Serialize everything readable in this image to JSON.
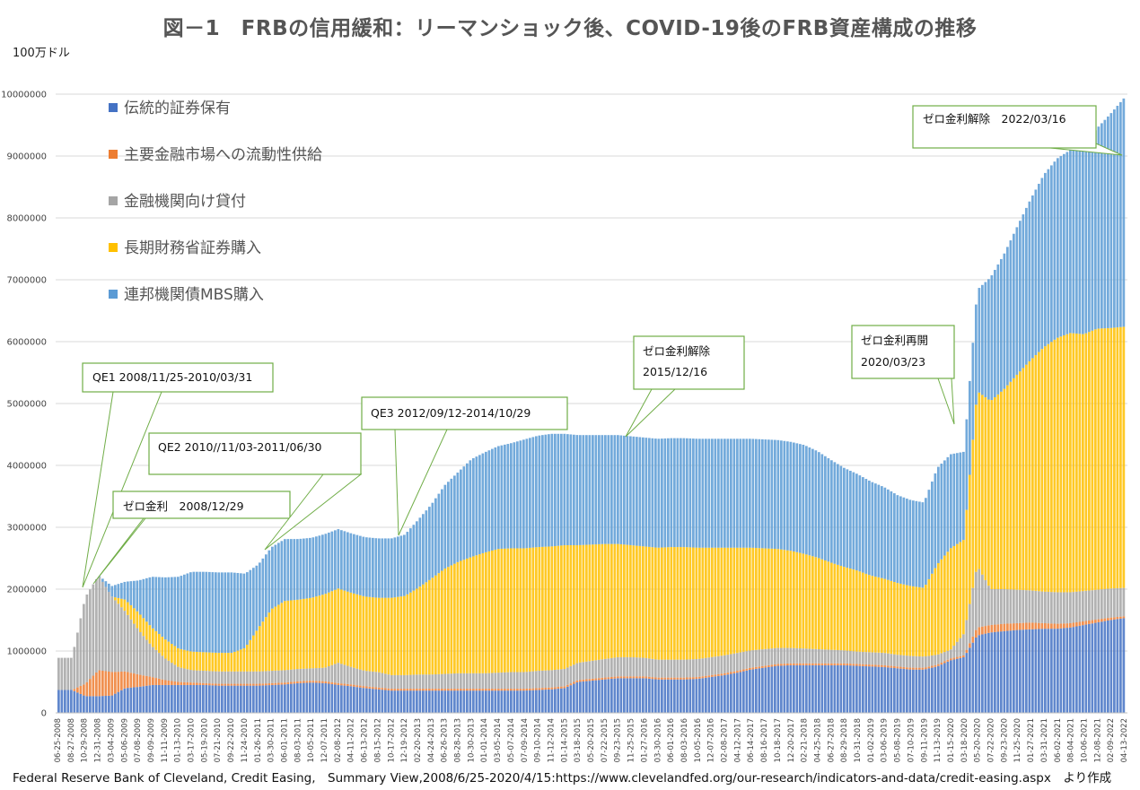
{
  "title": "図－1　FRBの信用緩和：リーマンショック後、COVID-19後のFRB資産構成の推移",
  "unit_label": "100万ドル",
  "source_note": "Federal Reserve Bank of Cleveland, Credit Easing,　Summary View,2008/6/25-2020/4/15:https://www.clevelandfed.org/our-research/indicators-and-data/credit-easing.aspx　より作成",
  "colors": {
    "traditional": "#4472c4",
    "liquidity": "#ed7d31",
    "lending": "#a5a5a5",
    "treasury": "#ffc000",
    "mbs": "#5b9bd5"
  },
  "chart_data": {
    "type": "area",
    "stacked": true,
    "title": "図－1　FRBの信用緩和：リーマンショック後、COVID-19後のFRB資産構成の推移",
    "ylabel": "100万ドル",
    "ylim": [
      0,
      10000000
    ],
    "yticks": [
      0,
      1000000,
      2000000,
      3000000,
      4000000,
      5000000,
      6000000,
      7000000,
      8000000,
      9000000,
      10000000
    ],
    "grid": "horizontal",
    "legend_position": "upper-left",
    "x_tick_labels": [
      "06-25-2008",
      "08-27-2008",
      "10-29-2008",
      "12-31-2008",
      "03-04-2009",
      "05-06-2009",
      "07-08-2009",
      "09-09-2009",
      "11-11-2009",
      "01-13-2010",
      "03-17-2010",
      "05-19-2010",
      "07-21-2010",
      "09-22-2010",
      "11-24-2010",
      "01-26-2011",
      "03-30-2011",
      "06-01-2011",
      "08-03-2011",
      "10-05-2011",
      "12-07-2011",
      "02-08-2012",
      "04-11-2012",
      "06-13-2012",
      "08-15-2012",
      "10-17-2012",
      "12-19-2012",
      "02-20-2013",
      "04-24-2013",
      "06-26-2013",
      "08-28-2013",
      "10-30-2013",
      "01-01-2014",
      "03-05-2014",
      "05-07-2014",
      "07-09-2014",
      "09-10-2014",
      "11-12-2014",
      "01-14-2015",
      "03-18-2015",
      "05-20-2015",
      "07-22-2015",
      "09-23-2015",
      "11-25-2015",
      "01-27-2016",
      "03-30-2016",
      "06-01-2016",
      "08-03-2016",
      "10-05-2016",
      "12-07-2016",
      "02-08-2017",
      "04-12-2017",
      "06-14-2017",
      "08-16-2017",
      "10-18-2017",
      "12-20-2017",
      "02-21-2018",
      "04-25-2018",
      "06-27-2018",
      "08-29-2018",
      "10-31-2018",
      "01-02-2019",
      "03-06-2019",
      "05-08-2019",
      "07-10-2019",
      "09-11-2019",
      "11-13-2019",
      "01-15-2020",
      "03-18-2020",
      "05-20-2020",
      "07-22-2020",
      "09-23-2020",
      "11-25-2020",
      "01-27-2021",
      "03-31-2021",
      "06-02-2021",
      "08-04-2021",
      "10-06-2021",
      "12-08-2021",
      "02-09-2022",
      "04-13-2022"
    ],
    "series": [
      {
        "name": "伝統的証券保有",
        "key": "traditional",
        "values": [
          370000,
          370000,
          270000,
          270000,
          280000,
          400000,
          420000,
          450000,
          450000,
          450000,
          450000,
          450000,
          440000,
          440000,
          440000,
          440000,
          450000,
          460000,
          480000,
          490000,
          480000,
          450000,
          430000,
          400000,
          380000,
          360000,
          360000,
          360000,
          360000,
          360000,
          360000,
          360000,
          360000,
          360000,
          360000,
          360000,
          370000,
          380000,
          400000,
          500000,
          520000,
          540000,
          560000,
          560000,
          560000,
          540000,
          540000,
          540000,
          550000,
          580000,
          610000,
          650000,
          700000,
          730000,
          760000,
          770000,
          770000,
          770000,
          770000,
          770000,
          760000,
          750000,
          740000,
          720000,
          700000,
          700000,
          750000,
          850000,
          900000,
          1250000,
          1300000,
          1320000,
          1340000,
          1350000,
          1360000,
          1360000,
          1380000,
          1420000,
          1460000,
          1500000,
          1530000
        ]
      },
      {
        "name": "主要金融市場への流動性供給",
        "key": "liquidity",
        "values": [
          0,
          0,
          200000,
          420000,
          380000,
          270000,
          200000,
          130000,
          80000,
          50000,
          40000,
          30000,
          30000,
          30000,
          30000,
          30000,
          30000,
          30000,
          30000,
          30000,
          30000,
          30000,
          30000,
          30000,
          30000,
          30000,
          30000,
          30000,
          30000,
          30000,
          30000,
          30000,
          30000,
          30000,
          30000,
          30000,
          30000,
          30000,
          30000,
          30000,
          30000,
          30000,
          30000,
          30000,
          30000,
          30000,
          30000,
          30000,
          30000,
          30000,
          30000,
          30000,
          30000,
          30000,
          30000,
          30000,
          30000,
          30000,
          30000,
          30000,
          30000,
          30000,
          30000,
          30000,
          30000,
          30000,
          30000,
          30000,
          30000,
          130000,
          120000,
          120000,
          110000,
          110000,
          90000,
          80000,
          70000,
          60000,
          50000,
          40000,
          30000
        ]
      },
      {
        "name": "金融機関向け貸付",
        "key": "lending",
        "values": [
          520000,
          520000,
          1400000,
          1530000,
          1220000,
          970000,
          720000,
          500000,
          350000,
          240000,
          200000,
          200000,
          200000,
          200000,
          200000,
          200000,
          200000,
          200000,
          200000,
          200000,
          220000,
          330000,
          280000,
          250000,
          250000,
          220000,
          220000,
          230000,
          230000,
          240000,
          250000,
          250000,
          250000,
          260000,
          270000,
          270000,
          280000,
          280000,
          280000,
          280000,
          290000,
          300000,
          310000,
          310000,
          300000,
          290000,
          290000,
          290000,
          290000,
          290000,
          290000,
          290000,
          280000,
          270000,
          260000,
          250000,
          240000,
          230000,
          220000,
          210000,
          200000,
          200000,
          200000,
          190000,
          190000,
          180000,
          160000,
          140000,
          350000,
          1000000,
          580000,
          560000,
          540000,
          520000,
          510000,
          510000,
          500000,
          490000,
          480000,
          470000,
          460000
        ]
      },
      {
        "name": "長期財務省証券購入",
        "key": "treasury",
        "values": [
          0,
          0,
          0,
          0,
          0,
          190000,
          280000,
          300000,
          310000,
          300000,
          300000,
          300000,
          300000,
          300000,
          380000,
          700000,
          1000000,
          1120000,
          1120000,
          1140000,
          1190000,
          1200000,
          1200000,
          1200000,
          1200000,
          1250000,
          1280000,
          1400000,
          1550000,
          1700000,
          1800000,
          1880000,
          1950000,
          2000000,
          2000000,
          2000000,
          2000000,
          2000000,
          2000000,
          1900000,
          1880000,
          1860000,
          1830000,
          1810000,
          1800000,
          1810000,
          1820000,
          1820000,
          1800000,
          1770000,
          1740000,
          1700000,
          1660000,
          1630000,
          1600000,
          1570000,
          1530000,
          1480000,
          1410000,
          1350000,
          1310000,
          1240000,
          1200000,
          1160000,
          1130000,
          1110000,
          1460000,
          1640000,
          1520000,
          2820000,
          3040000,
          3230000,
          3480000,
          3720000,
          3950000,
          4110000,
          4190000,
          4150000,
          4220000,
          4210000,
          4220000
        ]
      },
      {
        "name": "連邦機関債MBS購入",
        "key": "mbs",
        "values": [
          0,
          0,
          0,
          0,
          170000,
          290000,
          520000,
          820000,
          1000000,
          1160000,
          1290000,
          1300000,
          1300000,
          1300000,
          1200000,
          1030000,
          1000000,
          1000000,
          980000,
          970000,
          970000,
          960000,
          960000,
          960000,
          960000,
          960000,
          990000,
          1100000,
          1200000,
          1350000,
          1450000,
          1580000,
          1620000,
          1660000,
          1700000,
          1760000,
          1800000,
          1820000,
          1800000,
          1780000,
          1770000,
          1760000,
          1760000,
          1760000,
          1760000,
          1760000,
          1760000,
          1760000,
          1760000,
          1760000,
          1760000,
          1760000,
          1760000,
          1760000,
          1760000,
          1760000,
          1760000,
          1720000,
          1660000,
          1600000,
          1560000,
          1520000,
          1480000,
          1420000,
          1390000,
          1380000,
          1560000,
          1520000,
          1420000,
          1640000,
          2000000,
          2180000,
          2390000,
          2600000,
          2790000,
          2900000,
          2960000,
          3050000,
          3240000,
          3460000,
          3690000
        ]
      }
    ]
  },
  "legend": [
    {
      "label": "伝統的証券保有",
      "key": "traditional"
    },
    {
      "label": "主要金融市場への流動性供給",
      "key": "liquidity"
    },
    {
      "label": "金融機関向け貸付",
      "key": "lending"
    },
    {
      "label": "長期財務省証券購入",
      "key": "treasury"
    },
    {
      "label": "連邦機関債MBS購入",
      "key": "mbs"
    }
  ],
  "annotations": [
    {
      "key": "qe1",
      "lines": [
        "QE1  2008/11/25-2010/03/31"
      ]
    },
    {
      "key": "zero1",
      "lines": [
        "ゼロ金利　2008/12/29"
      ]
    },
    {
      "key": "qe2",
      "lines": [
        "QE2  2010//11/03-2011/06/30"
      ]
    },
    {
      "key": "qe3",
      "lines": [
        "QE3  2012/09/12-2014/10/29"
      ]
    },
    {
      "key": "exit1",
      "lines": [
        "ゼロ金利解除",
        "2015/12/16"
      ]
    },
    {
      "key": "zero2",
      "lines": [
        "ゼロ金利再開",
        "2020/03/23"
      ]
    },
    {
      "key": "exit2",
      "lines": [
        "ゼロ金利解除　2022/03/16"
      ]
    }
  ]
}
